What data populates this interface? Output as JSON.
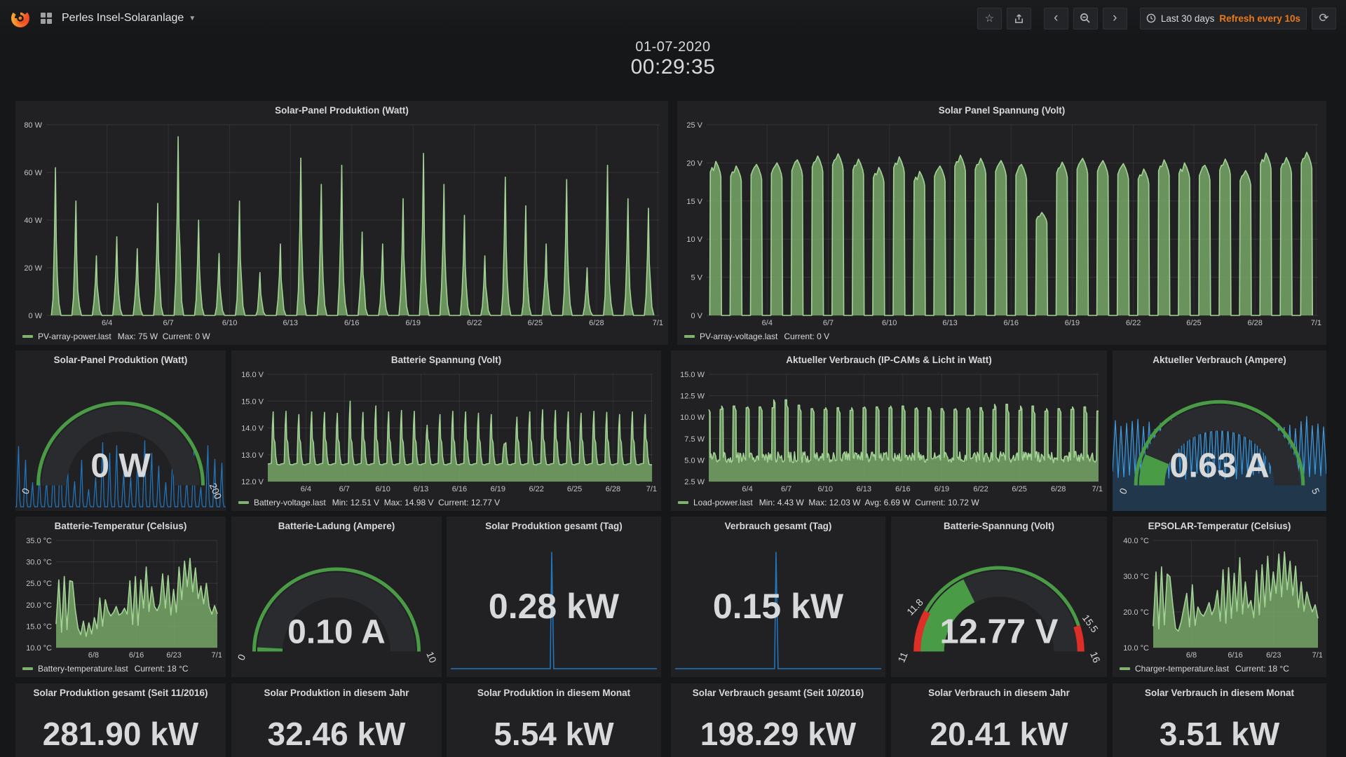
{
  "navbar": {
    "title": "Perles Insel-Solaranlage",
    "time_range": "Last 30 days",
    "refresh_interval": "Refresh every 10s",
    "icons": [
      "grafana-logo",
      "dashboards-grid-icon",
      "star-icon",
      "share-icon",
      "chevron-left-icon",
      "zoom-out-icon",
      "chevron-right-icon",
      "clock-icon",
      "refresh-icon"
    ]
  },
  "clock": {
    "date": "01-07-2020",
    "time": "00:29:35"
  },
  "colors": {
    "series_green": "#7eb26d",
    "series_green_line": "#a3d295",
    "series_blue": "#1f78c1",
    "gauge_green": "#4a9b45",
    "gauge_red": "#dd2e27",
    "accent_orange": "#eb7b18",
    "panel_bg": "#212124",
    "page_bg": "#161719"
  },
  "chart_data": {
    "solar_power": {
      "type": "area",
      "shape": "spike",
      "title": "Solar-Panel Produktion (Watt)",
      "legend_name": "PV-array-power.last",
      "legend_stats": "Max: 75 W  Current: 0 W",
      "ylim": [
        0,
        80
      ],
      "ytick_w": 32,
      "yticks": [
        {
          "v": 0,
          "l": "0 W"
        },
        {
          "v": 20,
          "l": "20 W"
        },
        {
          "v": 40,
          "l": "40 W"
        },
        {
          "v": 60,
          "l": "60 W"
        },
        {
          "v": 80,
          "l": "80 W"
        }
      ],
      "xticks": [
        {
          "f": 0.099,
          "l": "6/4"
        },
        {
          "f": 0.199,
          "l": "6/7"
        },
        {
          "f": 0.299,
          "l": "6/10"
        },
        {
          "f": 0.398,
          "l": "6/13"
        },
        {
          "f": 0.498,
          "l": "6/16"
        },
        {
          "f": 0.598,
          "l": "6/19"
        },
        {
          "f": 0.698,
          "l": "6/22"
        },
        {
          "f": 0.797,
          "l": "6/25"
        },
        {
          "f": 0.897,
          "l": "6/28"
        },
        {
          "f": 0.997,
          "l": "7/1"
        }
      ],
      "day_peaks": [
        62,
        48,
        25,
        33,
        28,
        47,
        75,
        40,
        26,
        48,
        18,
        30,
        66,
        55,
        63,
        35,
        30,
        49,
        68,
        55,
        42,
        25,
        58,
        46,
        30,
        57,
        20,
        63,
        49,
        45
      ]
    },
    "solar_voltage": {
      "type": "area",
      "shape": "trapezoid",
      "title": "Solar Panel Spannung (Volt)",
      "legend_name": "PV-array-voltage.last",
      "legend_stats": "Current: 0 V",
      "ylim": [
        0,
        25
      ],
      "ytick_w": 30,
      "yticks": [
        {
          "v": 0,
          "l": "0 V"
        },
        {
          "v": 5,
          "l": "5 V"
        },
        {
          "v": 10,
          "l": "10 V"
        },
        {
          "v": 15,
          "l": "15 V"
        },
        {
          "v": 20,
          "l": "20 V"
        },
        {
          "v": 25,
          "l": "25 V"
        }
      ],
      "xticks": [
        {
          "f": 0.099,
          "l": "6/4"
        },
        {
          "f": 0.199,
          "l": "6/7"
        },
        {
          "f": 0.299,
          "l": "6/10"
        },
        {
          "f": 0.398,
          "l": "6/13"
        },
        {
          "f": 0.498,
          "l": "6/16"
        },
        {
          "f": 0.598,
          "l": "6/19"
        },
        {
          "f": 0.698,
          "l": "6/22"
        },
        {
          "f": 0.797,
          "l": "6/25"
        },
        {
          "f": 0.897,
          "l": "6/28"
        },
        {
          "f": 0.997,
          "l": "7/1"
        }
      ],
      "day_peaks": [
        20.2,
        19.6,
        19.8,
        20.0,
        20.4,
        20.9,
        21.2,
        20.5,
        19.4,
        20.8,
        18.9,
        19.6,
        21.0,
        20.6,
        20.3,
        19.8,
        13.5,
        20.1,
        20.6,
        20.3,
        19.9,
        19.2,
        20.4,
        20.0,
        19.7,
        20.5,
        19.0,
        21.3,
        20.7,
        21.4
      ]
    },
    "battery_voltage": {
      "type": "area",
      "shape": "battery",
      "title": "Batterie Spannung (Volt)",
      "legend_name": "Battery-voltage.last",
      "legend_stats": "Min: 12.51 V  Max: 14.98 V  Current: 12.77 V",
      "ylim": [
        12,
        16
      ],
      "ytick_w": 40,
      "yticks": [
        {
          "v": 12,
          "l": "12.0 V"
        },
        {
          "v": 13,
          "l": "13.0 V"
        },
        {
          "v": 14,
          "l": "14.0 V"
        },
        {
          "v": 15,
          "l": "15.0 V"
        },
        {
          "v": 16,
          "l": "16.0 V"
        }
      ],
      "xticks": [
        {
          "f": 0.099,
          "l": "6/4"
        },
        {
          "f": 0.199,
          "l": "6/7"
        },
        {
          "f": 0.299,
          "l": "6/10"
        },
        {
          "f": 0.398,
          "l": "6/13"
        },
        {
          "f": 0.498,
          "l": "6/16"
        },
        {
          "f": 0.598,
          "l": "6/19"
        },
        {
          "f": 0.698,
          "l": "6/22"
        },
        {
          "f": 0.797,
          "l": "6/25"
        },
        {
          "f": 0.897,
          "l": "6/28"
        },
        {
          "f": 0.997,
          "l": "7/1"
        }
      ],
      "day_peaks": [
        14.6,
        14.62,
        14.5,
        14.6,
        14.58,
        14.55,
        15.0,
        14.58,
        14.82,
        14.6,
        14.65,
        14.62,
        14.1,
        14.5,
        14.62,
        14.6,
        14.55,
        14.5,
        13.4,
        14.4,
        14.6,
        14.68,
        14.65,
        14.6,
        14.55,
        14.62,
        14.58,
        14.5,
        14.6,
        14.5
      ]
    },
    "load_power": {
      "type": "area",
      "shape": "load",
      "title": "Aktueller Verbrauch (IP-CAMs & Licht in Watt)",
      "legend_name": "Load-power.last",
      "legend_stats": "Min: 4.43 W  Max: 12.03 W  Avg: 6.69 W  Current: 10.72 W",
      "ylim": [
        2.5,
        15
      ],
      "ytick_w": 42,
      "yticks": [
        {
          "v": 2.5,
          "l": "2.5 W"
        },
        {
          "v": 5,
          "l": "5.0 W"
        },
        {
          "v": 7.5,
          "l": "7.5 W"
        },
        {
          "v": 10,
          "l": "10.0 W"
        },
        {
          "v": 12.5,
          "l": "12.5 W"
        },
        {
          "v": 15,
          "l": "15.0 W"
        }
      ],
      "xticks": [
        {
          "f": 0.099,
          "l": "6/4"
        },
        {
          "f": 0.199,
          "l": "6/7"
        },
        {
          "f": 0.299,
          "l": "6/10"
        },
        {
          "f": 0.398,
          "l": "6/13"
        },
        {
          "f": 0.498,
          "l": "6/16"
        },
        {
          "f": 0.598,
          "l": "6/19"
        },
        {
          "f": 0.698,
          "l": "6/22"
        },
        {
          "f": 0.797,
          "l": "6/25"
        },
        {
          "f": 0.897,
          "l": "6/28"
        },
        {
          "f": 0.997,
          "l": "7/1"
        }
      ],
      "day_peaks": [
        10.9,
        11.3,
        11.1,
        11.2,
        11.1,
        12.03,
        11.4,
        11.0,
        10.9,
        11.1,
        10.8,
        11.1,
        11.2,
        11.1,
        11.3,
        11.0,
        11.1,
        11.0,
        10.9,
        11.0,
        11.1,
        10.9,
        11.5,
        10.8,
        11.3,
        10.7,
        11.0,
        10.9,
        11.2,
        10.72
      ]
    },
    "battery_temp": {
      "type": "area",
      "shape": "samples",
      "title": "Batterie-Temperatur (Celsius)",
      "legend_name": "Battery-temperature.last",
      "legend_stats": "Current: 18 °C",
      "ylim": [
        10,
        35
      ],
      "ytick_w": 46,
      "yticks": [
        {
          "v": 10,
          "l": "10.0 °C"
        },
        {
          "v": 15,
          "l": "15.0 °C"
        },
        {
          "v": 20,
          "l": "20.0 °C"
        },
        {
          "v": 25,
          "l": "25.0 °C"
        },
        {
          "v": 30,
          "l": "30.0 °C"
        },
        {
          "v": 35,
          "l": "35.0 °C"
        }
      ],
      "xticks": [
        {
          "f": 0.232,
          "l": "6/8"
        },
        {
          "f": 0.498,
          "l": "6/16"
        },
        {
          "f": 0.731,
          "l": "6/23"
        },
        {
          "f": 0.997,
          "l": "7/1"
        }
      ],
      "values": [
        15.5,
        25.8,
        13.6,
        26.6,
        14.2,
        25.6,
        25.4,
        19.0,
        14.6,
        13.0,
        16.2,
        12.6,
        15.8,
        13.2,
        17.0,
        14.4,
        21.6,
        15.0,
        21.2,
        18.6,
        17.4,
        18.2,
        19.6,
        17.6,
        18.0,
        19.2,
        17.8,
        25.6,
        15.4,
        26.6,
        15.2,
        25.8,
        19.2,
        28.8,
        18.4,
        24.2,
        19.6,
        18.6,
        20.2,
        27.2,
        19.2,
        26.8,
        17.6,
        23.6,
        18.2,
        28.8,
        21.2,
        30.2,
        24.2,
        30.8,
        23.0,
        28.6,
        21.4,
        24.4,
        20.2,
        25.0,
        19.6,
        17.8,
        19.8,
        17.9
      ]
    },
    "epsolar_temp": {
      "type": "area",
      "shape": "samples",
      "title": "EPSOLAR-Temperatur (Celsius)",
      "legend_name": "Charger-temperature.last",
      "legend_stats": "Current: 18 °C",
      "ylim": [
        10,
        40
      ],
      "ytick_w": 46,
      "yticks": [
        {
          "v": 10,
          "l": "10.0 °C"
        },
        {
          "v": 20,
          "l": "20.0 °C"
        },
        {
          "v": 30,
          "l": "30.0 °C"
        },
        {
          "v": 40,
          "l": "40.0 °C"
        }
      ],
      "xticks": [
        {
          "f": 0.232,
          "l": "6/8"
        },
        {
          "f": 0.498,
          "l": "6/16"
        },
        {
          "f": 0.731,
          "l": "6/23"
        },
        {
          "f": 0.997,
          "l": "7/1"
        }
      ],
      "values": [
        16.0,
        31.2,
        15.2,
        32.6,
        16.4,
        30.6,
        29.8,
        22.0,
        15.4,
        14.6,
        17.2,
        21.2,
        25.2,
        15.8,
        27.6,
        16.2,
        21.4,
        19.6,
        18.8,
        20.4,
        22.6,
        19.2,
        21.2,
        26.0,
        17.4,
        31.8,
        16.8,
        32.4,
        18.2,
        30.8,
        20.2,
        35.2,
        19.4,
        28.4,
        21.2,
        23.2,
        18.4,
        31.6,
        19.2,
        33.2,
        21.4,
        35.6,
        23.2,
        31.2,
        25.2,
        36.2,
        24.2,
        36.8,
        26.2,
        34.2,
        24.6,
        32.8,
        21.2,
        28.4,
        20.2,
        25.6,
        22.4,
        20.0,
        22.0,
        18.2
      ]
    },
    "solar_power_gauge": {
      "type": "gauge",
      "title": "Solar-Panel Produktion (Watt)",
      "value": 0,
      "min": 0,
      "max": 200,
      "text": "0 W",
      "scale_labels": [
        {
          "v": 0,
          "t": "0"
        },
        {
          "v": 200,
          "t": "200"
        }
      ],
      "sparkline": "spikes"
    },
    "load_amps_gauge": {
      "type": "gauge",
      "title": "Aktueller Verbrauch (Ampere)",
      "value": 0.63,
      "min": 0,
      "max": 5,
      "text": "0.63 A",
      "scale_labels": [
        {
          "v": 0,
          "t": "0"
        },
        {
          "v": 5,
          "t": "5"
        }
      ],
      "sparkline": "zigzag"
    },
    "battery_charge_gauge": {
      "type": "gauge",
      "title": "Batterie-Ladung (Ampere)",
      "value": 0.1,
      "min": 0,
      "max": 10,
      "text": "0.10 A",
      "scale_labels": [
        {
          "v": 0,
          "t": "0"
        },
        {
          "v": 10,
          "t": "10"
        }
      ]
    },
    "battery_voltage_gauge": {
      "type": "gauge",
      "title": "Batterie-Spannung (Volt)",
      "value": 12.77,
      "min": 11,
      "max": 16,
      "text": "12.77 V",
      "scale_labels": [
        {
          "v": 11,
          "t": "11"
        },
        {
          "v": 11.8,
          "t": "11.8"
        },
        {
          "v": 15.5,
          "t": "15.5"
        },
        {
          "v": 16,
          "t": "16"
        }
      ],
      "ring": [
        {
          "from": 11,
          "to": 11.8,
          "color": "#dd2e27",
          "w": 10
        },
        {
          "from": 11.8,
          "to": 15.5,
          "color": "#4a9b45",
          "w": 5
        },
        {
          "from": 15.5,
          "to": 16,
          "color": "#dd2e27",
          "w": 10
        }
      ]
    },
    "day_production": {
      "type": "spark-stat",
      "title": "Solar Produktion gesamt (Tag)",
      "value": "0.28 kW"
    },
    "day_consumption": {
      "type": "spark-stat",
      "title": "Verbrauch gesamt (Tag)",
      "value": "0.15 kW"
    }
  },
  "stats": {
    "totals": [
      {
        "title": "Solar Produktion gesamt (Seit 11/2016)",
        "value": "281.90 kW"
      },
      {
        "title": "Solar Produktion in diesem Jahr",
        "value": "32.46 kW"
      },
      {
        "title": "Solar Produktion in diesem Monat",
        "value": "5.54 kW"
      },
      {
        "title": "Solar Verbrauch gesamt (Seit 10/2016)",
        "value": "198.29 kW"
      },
      {
        "title": "Solar Verbrauch in diesem Jahr",
        "value": "20.41 kW"
      },
      {
        "title": "Solar Verbrauch in diesem Monat",
        "value": "3.51 kW"
      }
    ]
  }
}
